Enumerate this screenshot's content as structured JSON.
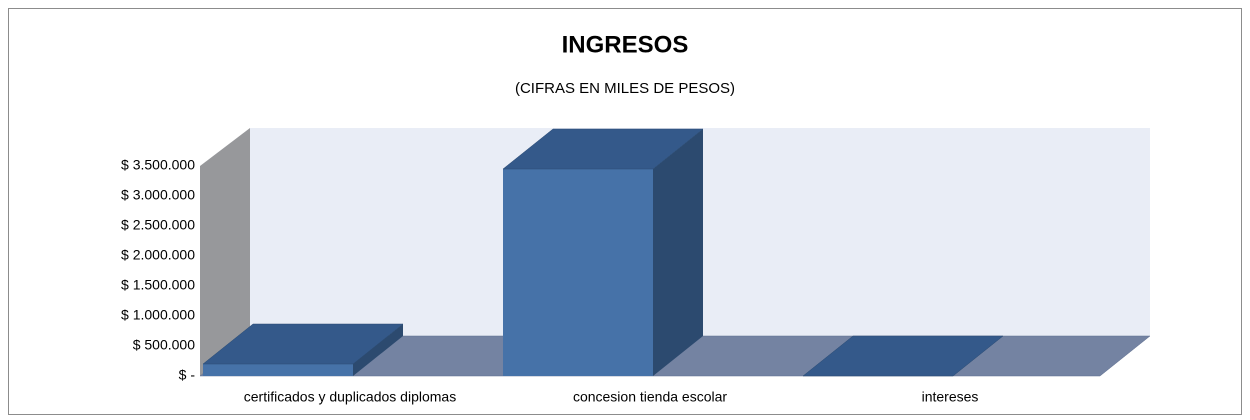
{
  "chart_data": {
    "type": "bar3d",
    "title": "INGRESOS",
    "subtitle": "(CIFRAS EN MILES DE PESOS)",
    "categories": [
      "certificados y duplicados diplomas",
      "concesion tienda escolar",
      "intereses"
    ],
    "values": [
      200000,
      3450000,
      0
    ],
    "color": "#4672a8",
    "ylim": [
      0,
      3500000
    ],
    "yticks": [
      {
        "value": 0,
        "label": "$ -"
      },
      {
        "value": 500000,
        "label": "$ 500.000"
      },
      {
        "value": 1000000,
        "label": "$ 1.000.000"
      },
      {
        "value": 1500000,
        "label": "$ 1.500.000"
      },
      {
        "value": 2000000,
        "label": "$ 2.000.000"
      },
      {
        "value": 2500000,
        "label": "$ 2.500.000"
      },
      {
        "value": 3000000,
        "label": "$ 3.000.000"
      },
      {
        "value": 3500000,
        "label": "$ 3.500.000"
      }
    ],
    "grid": false
  }
}
